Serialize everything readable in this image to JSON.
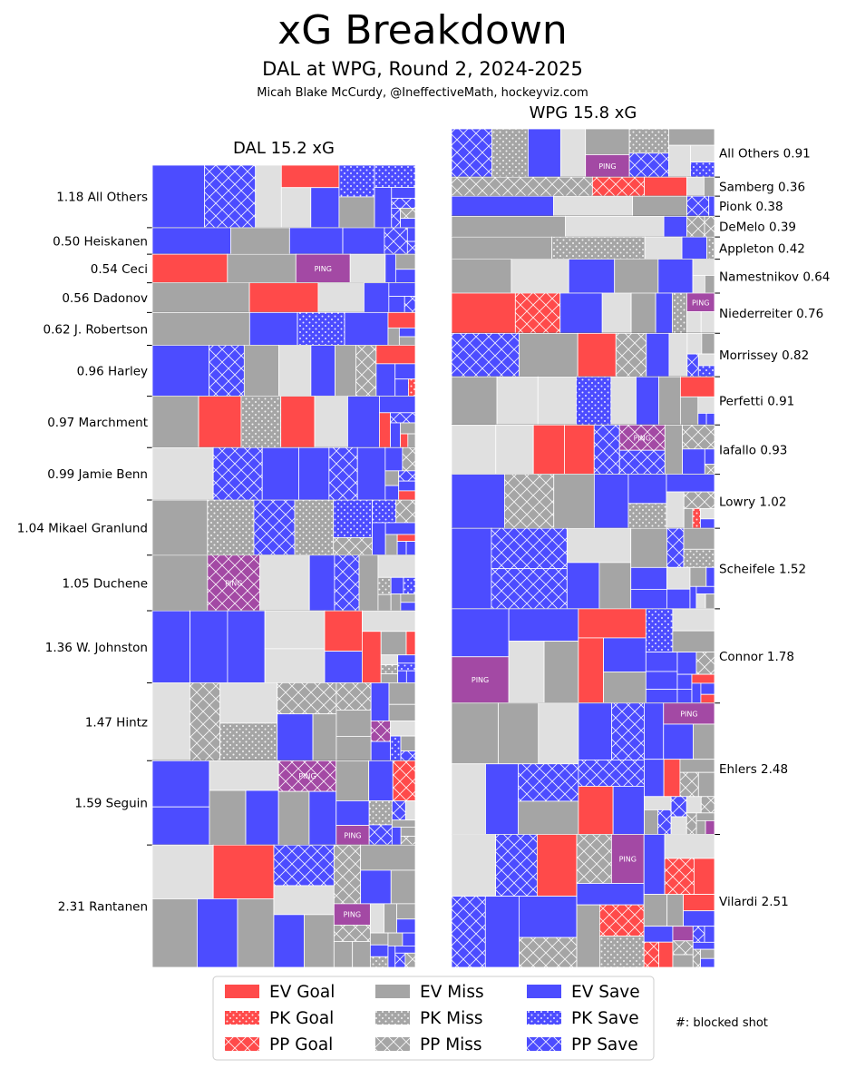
{
  "chart_data": {
    "type": "treemap",
    "title": "xG Breakdown",
    "subtitle": "DAL at WPG, Round 2, 2024-2025",
    "credit": "Micah Blake McCurdy, @IneffectiveMath, hockeyviz.com",
    "note": "#: blocked shot",
    "ping_label": "PING",
    "colors": {
      "goal": "#ff4a4a",
      "miss": "#a5a5a5",
      "save": "#4c4cff",
      "blocked": "#e0e0e0",
      "ping": "#a349a4",
      "line": "#000000"
    },
    "legend": [
      {
        "label": "EV Goal",
        "kind": "goal",
        "situation": "EV"
      },
      {
        "label": "PK Goal",
        "kind": "goal",
        "situation": "PK"
      },
      {
        "label": "PP Goal",
        "kind": "goal",
        "situation": "PP"
      },
      {
        "label": "EV Miss",
        "kind": "miss",
        "situation": "EV"
      },
      {
        "label": "PK Miss",
        "kind": "miss",
        "situation": "PK"
      },
      {
        "label": "PP Miss",
        "kind": "miss",
        "situation": "PP"
      },
      {
        "label": "EV Save",
        "kind": "save",
        "situation": "EV"
      },
      {
        "label": "PK Save",
        "kind": "save",
        "situation": "PK"
      },
      {
        "label": "PP Save",
        "kind": "save",
        "situation": "PP"
      }
    ],
    "teams": [
      {
        "team": "DAL",
        "title": "DAL 15.2 xG",
        "total_xg": 15.2,
        "label_side": "left",
        "players": [
          {
            "name": "All Others",
            "xg": 1.18,
            "label": "1.18 All Others"
          },
          {
            "name": "Heiskanen",
            "xg": 0.5,
            "label": "0.50 Heiskanen"
          },
          {
            "name": "Ceci",
            "xg": 0.54,
            "label": "0.54 Ceci"
          },
          {
            "name": "Dadonov",
            "xg": 0.56,
            "label": "0.56 Dadonov"
          },
          {
            "name": "J. Robertson",
            "xg": 0.62,
            "label": "0.62 J. Robertson"
          },
          {
            "name": "Harley",
            "xg": 0.96,
            "label": "0.96 Harley"
          },
          {
            "name": "Marchment",
            "xg": 0.97,
            "label": "0.97 Marchment"
          },
          {
            "name": "Jamie Benn",
            "xg": 0.99,
            "label": "0.99 Jamie Benn"
          },
          {
            "name": "Mikael Granlund",
            "xg": 1.04,
            "label": "1.04 Mikael Granlund"
          },
          {
            "name": "Duchene",
            "xg": 1.05,
            "label": "1.05 Duchene"
          },
          {
            "name": "W. Johnston",
            "xg": 1.36,
            "label": "1.36 W. Johnston"
          },
          {
            "name": "Hintz",
            "xg": 1.47,
            "label": "1.47 Hintz"
          },
          {
            "name": "Seguin",
            "xg": 1.59,
            "label": "1.59 Seguin"
          },
          {
            "name": "Rantanen",
            "xg": 2.31,
            "label": "2.31 Rantanen"
          }
        ]
      },
      {
        "team": "WPG",
        "title": "WPG 15.8 xG",
        "total_xg": 15.8,
        "label_side": "right",
        "players": [
          {
            "name": "All Others",
            "xg": 0.91,
            "label": "All Others 0.91"
          },
          {
            "name": "Samberg",
            "xg": 0.36,
            "label": "Samberg 0.36"
          },
          {
            "name": "Pionk",
            "xg": 0.38,
            "label": "Pionk 0.38"
          },
          {
            "name": "DeMelo",
            "xg": 0.39,
            "label": "DeMelo 0.39"
          },
          {
            "name": "Appleton",
            "xg": 0.42,
            "label": "Appleton 0.42"
          },
          {
            "name": "Namestnikov",
            "xg": 0.64,
            "label": "Namestnikov 0.64"
          },
          {
            "name": "Niederreiter",
            "xg": 0.76,
            "label": "Niederreiter 0.76"
          },
          {
            "name": "Morrissey",
            "xg": 0.82,
            "label": "Morrissey 0.82"
          },
          {
            "name": "Perfetti",
            "xg": 0.91,
            "label": "Perfetti 0.91"
          },
          {
            "name": "Iafallo",
            "xg": 0.93,
            "label": "Iafallo 0.93"
          },
          {
            "name": "Lowry",
            "xg": 1.02,
            "label": "Lowry 1.02"
          },
          {
            "name": "Scheifele",
            "xg": 1.52,
            "label": "Scheifele 1.52"
          },
          {
            "name": "Connor",
            "xg": 1.78,
            "label": "Connor 1.78"
          },
          {
            "name": "Ehlers",
            "xg": 2.48,
            "label": "Ehlers 2.48"
          },
          {
            "name": "Vilardi",
            "xg": 2.51,
            "label": "Vilardi 2.51"
          }
        ]
      }
    ]
  }
}
